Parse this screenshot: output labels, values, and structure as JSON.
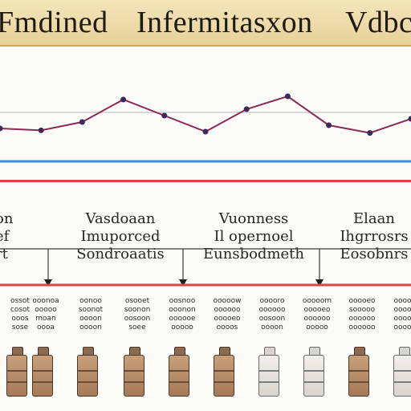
{
  "header": {
    "words": [
      "Fmdined",
      "Infermitasxon",
      "Vdbc"
    ]
  },
  "sections": [
    {
      "lines": [
        "on",
        "ef",
        "rt"
      ]
    },
    {
      "lines": [
        "Vasdoaan",
        "Imuporced",
        "Sondroaatis"
      ]
    },
    {
      "lines": [
        "Vuonness",
        "Il  opernoel",
        "Eunsbodmeth"
      ]
    },
    {
      "lines": [
        "Elaan",
        "Ihgrrosrs",
        "Eosobnrs"
      ]
    }
  ],
  "items": [
    {
      "lines": [
        "ossot",
        "cosot",
        "ooos",
        "sose"
      ],
      "style": "brown"
    },
    {
      "lines": [
        "ooonoa",
        "ooooo",
        "moan",
        "oooa"
      ],
      "style": "brown"
    },
    {
      "lines": [
        "oonoo",
        "soonot",
        "oooon",
        "oooon"
      ],
      "style": "brown"
    },
    {
      "lines": [
        "osooet",
        "soonon",
        "oosoon",
        "soee"
      ],
      "style": "brown"
    },
    {
      "lines": [
        "oosnoo",
        "ooonon",
        "oooooe",
        "ooooo"
      ],
      "style": "brown"
    },
    {
      "lines": [
        "ooooow",
        "oooooo",
        "ooooeo",
        "oooos"
      ],
      "style": "brown"
    },
    {
      "lines": [
        "ooooro",
        "oooooo",
        "oosoon",
        "oooon"
      ],
      "style": "pale"
    },
    {
      "lines": [
        "ooooom",
        "ooooeo",
        "oooooo",
        "ooooo"
      ],
      "style": "pale"
    },
    {
      "lines": [
        "ooooeo",
        "sooooo",
        "oooooo",
        "oooooo"
      ],
      "style": "brown"
    },
    {
      "lines": [
        "oooooe",
        "ooooeo",
        "oooooo",
        "oooooo"
      ],
      "style": "pale"
    }
  ],
  "chart_data": {
    "type": "line",
    "x": [
      0,
      1,
      2,
      3,
      4,
      5,
      6,
      7,
      8,
      9,
      10
    ],
    "series": [
      {
        "values": [
          0.25,
          0.22,
          0.35,
          0.7,
          0.45,
          0.2,
          0.55,
          0.75,
          0.3,
          0.18,
          0.4
        ]
      }
    ],
    "accent_colors": {
      "line": "#8a2b55",
      "marker": "#3d2a5a",
      "blue_rule": "#3a8ed8",
      "red_rule": "#d74646"
    }
  }
}
